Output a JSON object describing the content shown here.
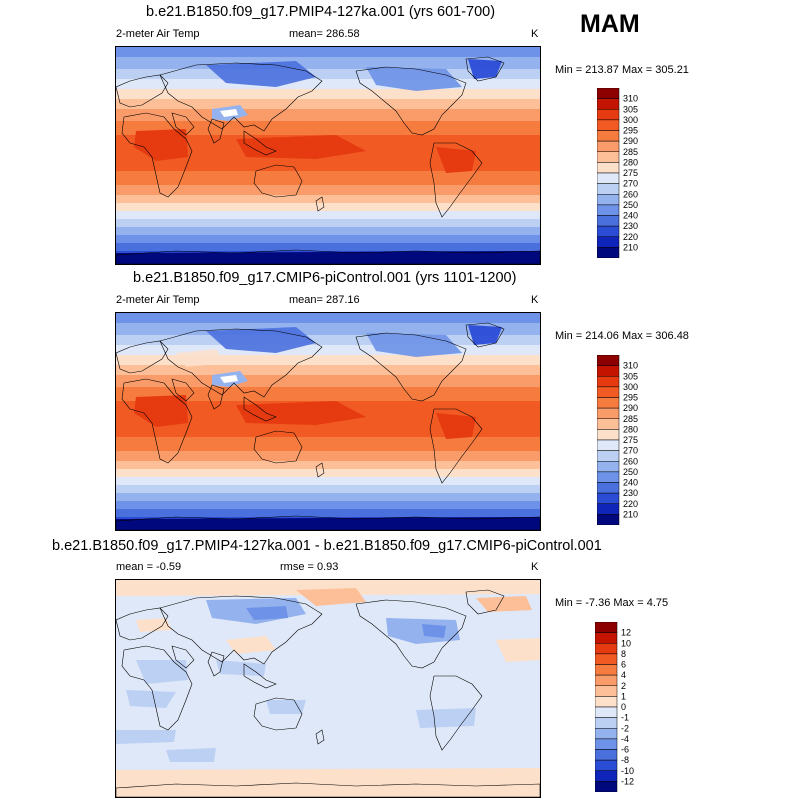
{
  "season": "MAM",
  "unit": "K",
  "panels": [
    {
      "title": "b.e21.B1850.f09_g17.PMIP4-127ka.001 (yrs 601-700)",
      "variable": "2-meter Air Temp",
      "mean_text": "mean= 286.58",
      "unit": "K",
      "minmax": "Min = 213.87 Max = 305.21",
      "colorbar": {
        "levels": [
          "310",
          "305",
          "300",
          "295",
          "290",
          "285",
          "280",
          "275",
          "270",
          "260",
          "250",
          "240",
          "230",
          "220",
          "210"
        ]
      }
    },
    {
      "title": "b.e21.B1850.f09_g17.CMIP6-piControl.001 (yrs 1101-1200)",
      "variable": "2-meter Air Temp",
      "mean_text": "mean= 287.16",
      "unit": "K",
      "minmax": "Min = 214.06 Max = 306.48",
      "colorbar": {
        "levels": [
          "310",
          "305",
          "300",
          "295",
          "290",
          "285",
          "280",
          "275",
          "270",
          "260",
          "250",
          "240",
          "230",
          "220",
          "210"
        ]
      }
    },
    {
      "title": "b.e21.B1850.f09_g17.PMIP4-127ka.001 - b.e21.B1850.f09_g17.CMIP6-piControl.001",
      "mean_text": "mean =  -0.59",
      "rmse_text": "rmse =   0.93",
      "unit": "K",
      "minmax": "Min =  -7.36 Max =   4.75",
      "colorbar": {
        "levels": [
          "12",
          "10",
          "8",
          "6",
          "4",
          "2",
          "1",
          "0",
          "-1",
          "-2",
          "-4",
          "-6",
          "-8",
          "-10",
          "-12"
        ]
      }
    }
  ],
  "colors": {
    "temp_scale": [
      "#8c0000",
      "#c41400",
      "#e63a10",
      "#f25a23",
      "#f67b3f",
      "#fa9c6a",
      "#fdbf98",
      "#fde0ca",
      "#dfe8f8",
      "#bcd0f4",
      "#94b2ee",
      "#6d92e7",
      "#4a70de",
      "#2b4dd6",
      "#0f24b8",
      "#00087e"
    ],
    "diff_scale": [
      "#8c0000",
      "#c41400",
      "#e63a10",
      "#f25a23",
      "#f67b3f",
      "#fa9c6a",
      "#fdbf98",
      "#fde0ca",
      "#dfe8f8",
      "#bcd0f4",
      "#94b2ee",
      "#6d92e7",
      "#4a70de",
      "#2b4dd6",
      "#0f24b8",
      "#00087e"
    ]
  }
}
